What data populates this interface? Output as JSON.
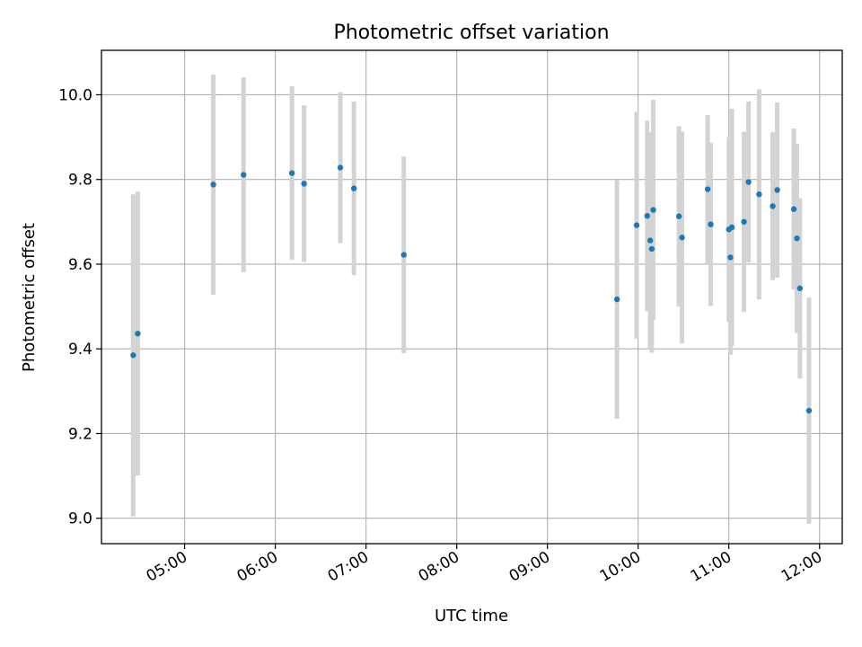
{
  "chart_data": {
    "type": "scatter",
    "title": "Photometric offset variation",
    "xlabel": "UTC time",
    "ylabel": "Photometric offset",
    "x_format": "HH:MM",
    "xlim": [
      "04:05",
      "12:15"
    ],
    "ylim": [
      8.94,
      10.105
    ],
    "x_ticks": [
      "05:00",
      "06:00",
      "07:00",
      "08:00",
      "09:00",
      "10:00",
      "11:00",
      "12:00"
    ],
    "y_ticks": [
      "9.0",
      "9.2",
      "9.4",
      "9.6",
      "9.8",
      "10.0"
    ],
    "grid": true,
    "colors": {
      "points": "#1f77b4",
      "errorbars": "#d3d3d3",
      "grid": "#b0b0b0"
    },
    "points": [
      {
        "x": "04:26",
        "y": 9.385,
        "yerr": 0.38
      },
      {
        "x": "04:29",
        "y": 9.436,
        "yerr": 0.335
      },
      {
        "x": "05:19",
        "y": 9.788,
        "yerr": 0.26
      },
      {
        "x": "05:39",
        "y": 9.811,
        "yerr": 0.23
      },
      {
        "x": "06:11",
        "y": 9.815,
        "yerr": 0.205
      },
      {
        "x": "06:19",
        "y": 9.79,
        "yerr": 0.185
      },
      {
        "x": "06:43",
        "y": 9.828,
        "yerr": 0.178
      },
      {
        "x": "06:52",
        "y": 9.779,
        "yerr": 0.205
      },
      {
        "x": "07:25",
        "y": 9.622,
        "yerr": 0.232
      },
      {
        "x": "09:46",
        "y": 9.517,
        "yerr": 0.282
      },
      {
        "x": "09:59",
        "y": 9.692,
        "yerr": 0.268
      },
      {
        "x": "10:06",
        "y": 9.714,
        "yerr": 0.225
      },
      {
        "x": "10:08",
        "y": 9.656,
        "yerr": 0.255
      },
      {
        "x": "10:09",
        "y": 9.636,
        "yerr": 0.245
      },
      {
        "x": "10:10",
        "y": 9.728,
        "yerr": 0.26
      },
      {
        "x": "10:27",
        "y": 9.713,
        "yerr": 0.213
      },
      {
        "x": "10:29",
        "y": 9.663,
        "yerr": 0.25
      },
      {
        "x": "10:46",
        "y": 9.777,
        "yerr": 0.175
      },
      {
        "x": "10:48",
        "y": 9.694,
        "yerr": 0.193
      },
      {
        "x": "11:00",
        "y": 9.682,
        "yerr": 0.218
      },
      {
        "x": "11:01",
        "y": 9.616,
        "yerr": 0.23
      },
      {
        "x": "11:02",
        "y": 9.687,
        "yerr": 0.28
      },
      {
        "x": "11:10",
        "y": 9.7,
        "yerr": 0.213
      },
      {
        "x": "11:13",
        "y": 9.794,
        "yerr": 0.19
      },
      {
        "x": "11:20",
        "y": 9.765,
        "yerr": 0.248
      },
      {
        "x": "11:29",
        "y": 9.737,
        "yerr": 0.175
      },
      {
        "x": "11:32",
        "y": 9.775,
        "yerr": 0.207
      },
      {
        "x": "11:43",
        "y": 9.73,
        "yerr": 0.19
      },
      {
        "x": "11:45",
        "y": 9.661,
        "yerr": 0.223
      },
      {
        "x": "11:47",
        "y": 9.543,
        "yerr": 0.213
      },
      {
        "x": "11:53",
        "y": 9.254,
        "yerr": 0.267
      }
    ]
  }
}
